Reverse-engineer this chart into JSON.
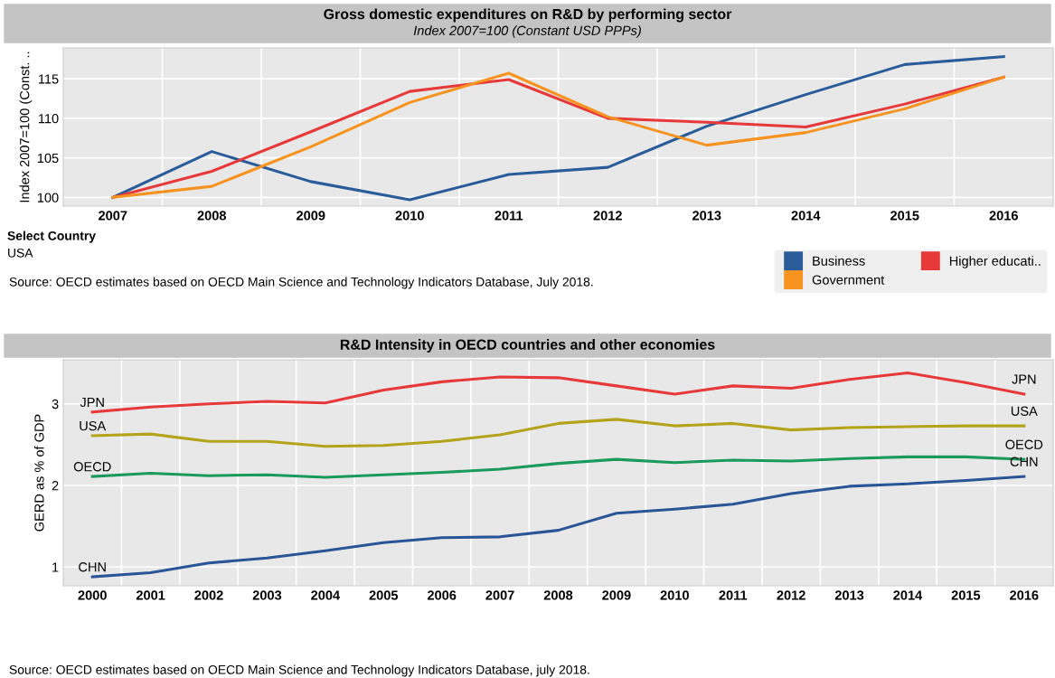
{
  "chart_data": [
    {
      "type": "line",
      "title": "Gross domestic expenditures on R&D by performing sector",
      "subtitle": "Index 2007=100 (Constant USD PPPs)",
      "ylabel": "Index 2007=100 (Const. ..",
      "categories": [
        "2007",
        "2008",
        "2009",
        "2010",
        "2011",
        "2012",
        "2013",
        "2014",
        "2015",
        "2016"
      ],
      "series": [
        {
          "name": "Business",
          "color": "#2a5c9a",
          "values": [
            100,
            105.8,
            102,
            99.7,
            102.9,
            103.8,
            109,
            113,
            116.8,
            117.8
          ]
        },
        {
          "name": "Higher educati..",
          "color": "#e8393a",
          "values": [
            100,
            103.3,
            108.3,
            113.4,
            114.9,
            110,
            109.5,
            108.9,
            111.8,
            115.2
          ]
        },
        {
          "name": "Government",
          "color": "#f7931e",
          "values": [
            100,
            101.4,
            106.4,
            112,
            115.7,
            110.2,
            106.6,
            108.2,
            111.2,
            115.2
          ]
        }
      ],
      "ylim": [
        98.9,
        118.9
      ],
      "yticks": [
        100,
        105,
        110,
        115
      ],
      "grid": true,
      "legend": "bottom right",
      "marker": "none",
      "line_style": "solid",
      "annotations": [
        "Select Country",
        "USA",
        "Source: OECD estimates based on OECD Main Science and Technology Indicators Database, July 2018."
      ]
    },
    {
      "type": "line",
      "title": "R&D Intensity in OECD countries and other economies",
      "ylabel": "GERD as % of GDP",
      "categories": [
        "2000",
        "2001",
        "2002",
        "2003",
        "2004",
        "2005",
        "2006",
        "2007",
        "2008",
        "2009",
        "2010",
        "2011",
        "2012",
        "2013",
        "2014",
        "2015",
        "2016"
      ],
      "series": [
        {
          "name": "JPN",
          "color": "#e8393a",
          "values": [
            2.9,
            2.96,
            3.0,
            3.03,
            3.01,
            3.17,
            3.27,
            3.33,
            3.32,
            3.22,
            3.12,
            3.22,
            3.19,
            3.3,
            3.38,
            3.26,
            3.12
          ]
        },
        {
          "name": "USA",
          "color": "#b3a41b",
          "values": [
            2.61,
            2.63,
            2.54,
            2.54,
            2.48,
            2.49,
            2.54,
            2.62,
            2.76,
            2.81,
            2.73,
            2.76,
            2.68,
            2.71,
            2.72,
            2.73,
            2.73
          ]
        },
        {
          "name": "OECD",
          "color": "#1a9a5b",
          "values": [
            2.11,
            2.15,
            2.12,
            2.13,
            2.1,
            2.13,
            2.16,
            2.2,
            2.27,
            2.32,
            2.28,
            2.31,
            2.3,
            2.33,
            2.35,
            2.35,
            2.32
          ]
        },
        {
          "name": "CHN",
          "color": "#2a5597",
          "values": [
            0.88,
            0.93,
            1.05,
            1.11,
            1.2,
            1.3,
            1.36,
            1.37,
            1.45,
            1.66,
            1.71,
            1.77,
            1.9,
            1.99,
            2.02,
            2.06,
            2.11
          ]
        }
      ],
      "ylim": [
        0.77,
        3.54
      ],
      "yticks": [
        1,
        2,
        3
      ],
      "grid": true,
      "marker": "none",
      "line_style": "solid",
      "annotations": [
        "Source: OECD estimates based on OECD Main Science and Technology Indicators Database, july 2018."
      ]
    }
  ]
}
